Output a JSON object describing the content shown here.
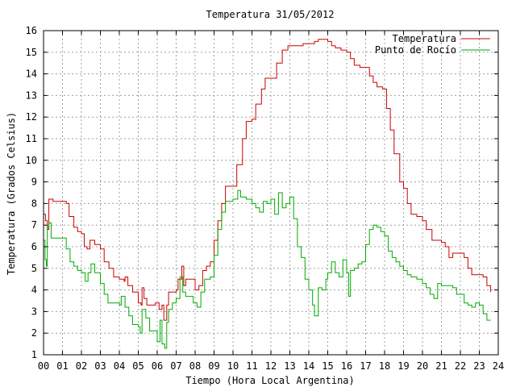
{
  "chart_data": {
    "type": "line",
    "title": "Temperatura 31/05/2012",
    "xlabel": "Tiempo (Hora Local Argentina)",
    "ylabel": "Temperatura (Grados Celsius)",
    "xlim": [
      0,
      24
    ],
    "ylim": [
      1,
      16
    ],
    "x_ticks": [
      "00",
      "01",
      "02",
      "03",
      "04",
      "05",
      "06",
      "07",
      "08",
      "09",
      "10",
      "11",
      "12",
      "13",
      "14",
      "15",
      "16",
      "17",
      "18",
      "19",
      "20",
      "21",
      "22",
      "23",
      "24"
    ],
    "y_ticks": [
      "1",
      "2",
      "3",
      "4",
      "5",
      "6",
      "7",
      "8",
      "9",
      "10",
      "11",
      "12",
      "13",
      "14",
      "15",
      "16"
    ],
    "grid": true,
    "legend_position": "top-right",
    "series": [
      {
        "name": "Temperatura",
        "color": "#cc0000",
        "points": [
          [
            0.0,
            7.5
          ],
          [
            0.1,
            7.2
          ],
          [
            0.2,
            6.8
          ],
          [
            0.28,
            8.2
          ],
          [
            0.5,
            8.1
          ],
          [
            1.0,
            8.1
          ],
          [
            1.2,
            8.0
          ],
          [
            1.35,
            7.4
          ],
          [
            1.6,
            6.9
          ],
          [
            1.8,
            6.7
          ],
          [
            2.0,
            6.6
          ],
          [
            2.15,
            6.0
          ],
          [
            2.3,
            5.9
          ],
          [
            2.45,
            6.3
          ],
          [
            2.7,
            6.1
          ],
          [
            3.0,
            5.9
          ],
          [
            3.2,
            5.3
          ],
          [
            3.45,
            5.0
          ],
          [
            3.7,
            4.6
          ],
          [
            4.0,
            4.5
          ],
          [
            4.25,
            4.4
          ],
          [
            4.3,
            4.6
          ],
          [
            4.45,
            4.2
          ],
          [
            4.7,
            3.9
          ],
          [
            5.0,
            3.4
          ],
          [
            5.15,
            3.3
          ],
          [
            5.2,
            4.1
          ],
          [
            5.3,
            3.6
          ],
          [
            5.45,
            3.3
          ],
          [
            5.7,
            3.3
          ],
          [
            5.9,
            3.4
          ],
          [
            6.1,
            3.1
          ],
          [
            6.25,
            3.3
          ],
          [
            6.35,
            2.6
          ],
          [
            6.5,
            3.3
          ],
          [
            6.6,
            3.9
          ],
          [
            6.8,
            3.9
          ],
          [
            7.0,
            4.0
          ],
          [
            7.1,
            4.5
          ],
          [
            7.3,
            5.1
          ],
          [
            7.4,
            4.2
          ],
          [
            7.5,
            4.5
          ],
          [
            7.8,
            4.5
          ],
          [
            8.0,
            4.0
          ],
          [
            8.2,
            4.2
          ],
          [
            8.4,
            4.9
          ],
          [
            8.6,
            5.1
          ],
          [
            8.8,
            5.3
          ],
          [
            9.0,
            6.3
          ],
          [
            9.2,
            7.2
          ],
          [
            9.4,
            8.0
          ],
          [
            9.6,
            8.8
          ],
          [
            10.0,
            8.8
          ],
          [
            10.2,
            9.8
          ],
          [
            10.5,
            11.0
          ],
          [
            10.7,
            11.8
          ],
          [
            11.0,
            11.9
          ],
          [
            11.2,
            12.6
          ],
          [
            11.5,
            13.3
          ],
          [
            11.7,
            13.8
          ],
          [
            12.0,
            13.8
          ],
          [
            12.3,
            14.5
          ],
          [
            12.6,
            15.1
          ],
          [
            12.9,
            15.3
          ],
          [
            13.5,
            15.3
          ],
          [
            13.7,
            15.4
          ],
          [
            14.0,
            15.4
          ],
          [
            14.3,
            15.5
          ],
          [
            14.5,
            15.6
          ],
          [
            14.7,
            15.6
          ],
          [
            15.0,
            15.5
          ],
          [
            15.2,
            15.3
          ],
          [
            15.4,
            15.2
          ],
          [
            15.7,
            15.1
          ],
          [
            16.0,
            15.0
          ],
          [
            16.2,
            14.7
          ],
          [
            16.4,
            14.4
          ],
          [
            16.7,
            14.3
          ],
          [
            17.0,
            14.3
          ],
          [
            17.2,
            13.9
          ],
          [
            17.4,
            13.6
          ],
          [
            17.6,
            13.4
          ],
          [
            17.9,
            13.3
          ],
          [
            18.1,
            12.4
          ],
          [
            18.3,
            11.4
          ],
          [
            18.5,
            10.3
          ],
          [
            18.8,
            9.0
          ],
          [
            19.0,
            8.7
          ],
          [
            19.2,
            8.0
          ],
          [
            19.4,
            7.5
          ],
          [
            19.7,
            7.4
          ],
          [
            20.0,
            7.2
          ],
          [
            20.2,
            6.8
          ],
          [
            20.5,
            6.3
          ],
          [
            20.8,
            6.3
          ],
          [
            21.0,
            6.2
          ],
          [
            21.2,
            6.0
          ],
          [
            21.4,
            5.5
          ],
          [
            21.6,
            5.7
          ],
          [
            22.0,
            5.7
          ],
          [
            22.2,
            5.5
          ],
          [
            22.4,
            5.0
          ],
          [
            22.6,
            4.7
          ],
          [
            23.0,
            4.7
          ],
          [
            23.2,
            4.6
          ],
          [
            23.4,
            4.2
          ],
          [
            23.6,
            3.9
          ]
        ]
      },
      {
        "name": "Punto de Rocío",
        "color": "#00aa00",
        "points": [
          [
            0.0,
            6.3
          ],
          [
            0.08,
            5.4
          ],
          [
            0.15,
            5.1
          ],
          [
            0.2,
            6.9
          ],
          [
            0.28,
            7.1
          ],
          [
            0.4,
            6.4
          ],
          [
            0.7,
            6.4
          ],
          [
            1.0,
            6.4
          ],
          [
            1.2,
            5.9
          ],
          [
            1.4,
            5.3
          ],
          [
            1.6,
            5.1
          ],
          [
            1.8,
            4.9
          ],
          [
            2.0,
            4.8
          ],
          [
            2.2,
            4.4
          ],
          [
            2.35,
            4.8
          ],
          [
            2.5,
            5.2
          ],
          [
            2.7,
            4.8
          ],
          [
            3.0,
            4.3
          ],
          [
            3.2,
            3.8
          ],
          [
            3.4,
            3.4
          ],
          [
            3.7,
            3.4
          ],
          [
            4.0,
            3.3
          ],
          [
            4.1,
            3.7
          ],
          [
            4.3,
            3.2
          ],
          [
            4.5,
            2.8
          ],
          [
            4.7,
            2.4
          ],
          [
            5.0,
            2.3
          ],
          [
            5.1,
            2.0
          ],
          [
            5.2,
            3.1
          ],
          [
            5.4,
            2.7
          ],
          [
            5.6,
            2.1
          ],
          [
            5.8,
            2.1
          ],
          [
            6.0,
            1.6
          ],
          [
            6.15,
            2.6
          ],
          [
            6.25,
            1.5
          ],
          [
            6.4,
            1.3
          ],
          [
            6.5,
            2.5
          ],
          [
            6.6,
            3.1
          ],
          [
            6.8,
            3.4
          ],
          [
            7.0,
            3.6
          ],
          [
            7.2,
            4.6
          ],
          [
            7.35,
            3.9
          ],
          [
            7.5,
            3.7
          ],
          [
            7.7,
            3.7
          ],
          [
            7.9,
            3.4
          ],
          [
            8.1,
            3.2
          ],
          [
            8.3,
            3.9
          ],
          [
            8.5,
            4.5
          ],
          [
            8.8,
            4.6
          ],
          [
            9.0,
            5.6
          ],
          [
            9.2,
            6.8
          ],
          [
            9.4,
            7.6
          ],
          [
            9.6,
            8.1
          ],
          [
            10.0,
            8.2
          ],
          [
            10.25,
            8.6
          ],
          [
            10.4,
            8.3
          ],
          [
            10.7,
            8.2
          ],
          [
            11.0,
            8.0
          ],
          [
            11.2,
            7.8
          ],
          [
            11.4,
            7.6
          ],
          [
            11.6,
            8.1
          ],
          [
            11.8,
            8.0
          ],
          [
            12.0,
            8.2
          ],
          [
            12.2,
            7.5
          ],
          [
            12.4,
            8.5
          ],
          [
            12.6,
            7.8
          ],
          [
            12.8,
            8.0
          ],
          [
            13.0,
            8.3
          ],
          [
            13.2,
            7.3
          ],
          [
            13.4,
            6.0
          ],
          [
            13.6,
            5.5
          ],
          [
            13.8,
            4.5
          ],
          [
            14.0,
            4.0
          ],
          [
            14.2,
            3.3
          ],
          [
            14.3,
            2.8
          ],
          [
            14.5,
            4.1
          ],
          [
            14.7,
            4.0
          ],
          [
            14.9,
            4.5
          ],
          [
            15.0,
            4.8
          ],
          [
            15.2,
            5.3
          ],
          [
            15.4,
            4.8
          ],
          [
            15.6,
            4.6
          ],
          [
            15.8,
            5.4
          ],
          [
            16.0,
            4.8
          ],
          [
            16.1,
            3.7
          ],
          [
            16.2,
            4.9
          ],
          [
            16.4,
            5.0
          ],
          [
            16.6,
            5.2
          ],
          [
            16.8,
            5.3
          ],
          [
            17.0,
            6.1
          ],
          [
            17.2,
            6.8
          ],
          [
            17.4,
            7.0
          ],
          [
            17.6,
            6.9
          ],
          [
            17.8,
            6.7
          ],
          [
            18.0,
            6.5
          ],
          [
            18.2,
            5.8
          ],
          [
            18.4,
            5.5
          ],
          [
            18.6,
            5.3
          ],
          [
            18.8,
            5.1
          ],
          [
            19.0,
            4.9
          ],
          [
            19.2,
            4.7
          ],
          [
            19.4,
            4.6
          ],
          [
            19.7,
            4.5
          ],
          [
            20.0,
            4.3
          ],
          [
            20.2,
            4.1
          ],
          [
            20.4,
            3.8
          ],
          [
            20.6,
            3.6
          ],
          [
            20.8,
            4.3
          ],
          [
            21.0,
            4.2
          ],
          [
            21.2,
            4.2
          ],
          [
            21.4,
            4.2
          ],
          [
            21.6,
            4.1
          ],
          [
            21.8,
            3.8
          ],
          [
            22.0,
            3.8
          ],
          [
            22.2,
            3.4
          ],
          [
            22.4,
            3.3
          ],
          [
            22.6,
            3.2
          ],
          [
            22.8,
            3.4
          ],
          [
            23.0,
            3.3
          ],
          [
            23.2,
            2.9
          ],
          [
            23.4,
            2.6
          ],
          [
            23.6,
            2.6
          ]
        ]
      }
    ]
  }
}
